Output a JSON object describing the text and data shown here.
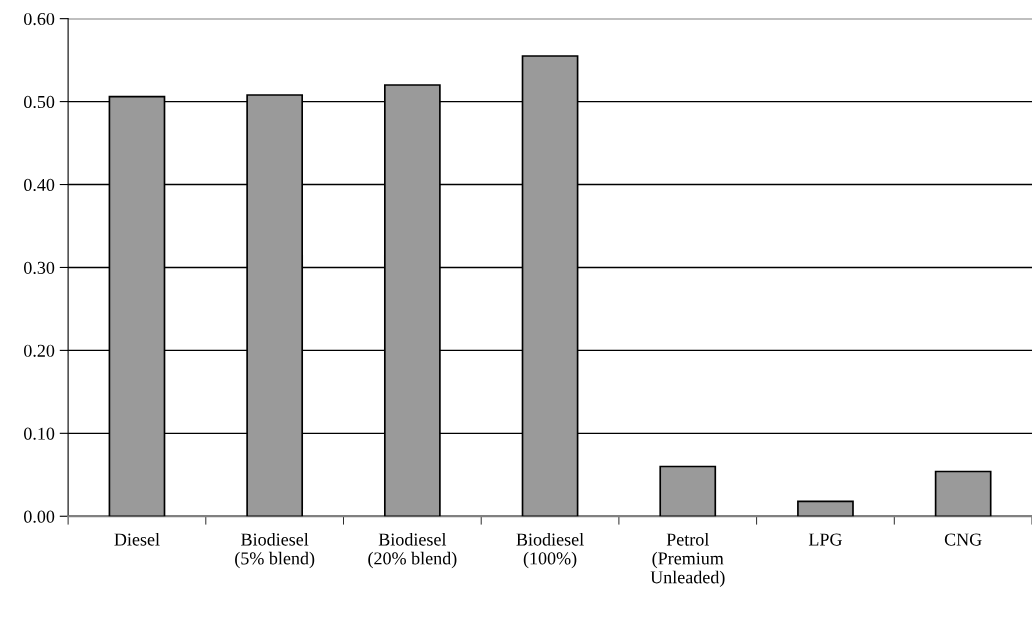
{
  "chart_data": {
    "type": "bar",
    "categories": [
      "Diesel",
      "Biodiesel\n(5% blend)",
      "Biodiesel\n(20% blend)",
      "Biodiesel\n(100%)",
      "Petrol\n(Premium\nUnleaded)",
      "LPG",
      "CNG"
    ],
    "values": [
      0.506,
      0.508,
      0.52,
      0.555,
      0.06,
      0.018,
      0.054
    ],
    "color": "#9a9a9a",
    "ylim": [
      0,
      0.6
    ],
    "yticks": [
      {
        "value": 0,
        "label": "0.00"
      },
      {
        "value": 0.1,
        "label": "0.10"
      },
      {
        "value": 0.2,
        "label": "0.20"
      },
      {
        "value": 0.3,
        "label": "0.30"
      },
      {
        "value": 0.4,
        "label": "0.40"
      },
      {
        "value": 0.5,
        "label": "0.50"
      },
      {
        "value": 0.6,
        "label": "0.60"
      }
    ],
    "grid": "y"
  }
}
